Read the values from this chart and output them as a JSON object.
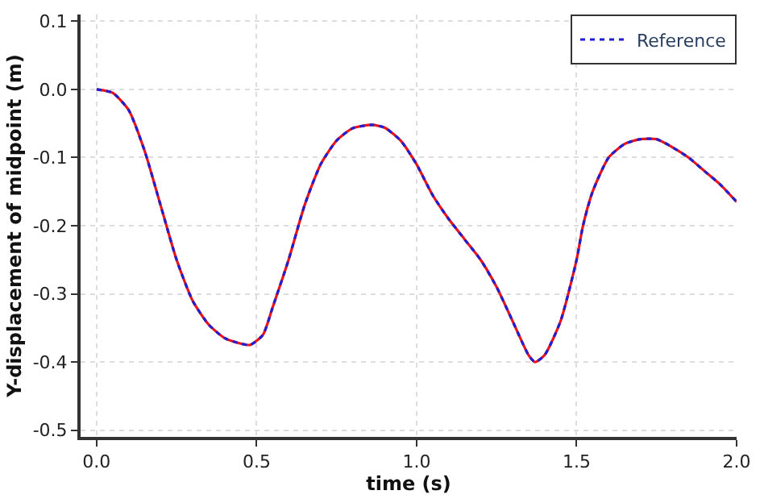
{
  "chart_data": {
    "type": "line",
    "xlabel": "time (s)",
    "ylabel": "Y-displacement of midpoint (m)",
    "x": [
      0,
      0.05,
      0.1,
      0.15,
      0.2,
      0.25,
      0.3,
      0.35,
      0.4,
      0.45,
      0.48,
      0.52,
      0.55,
      0.6,
      0.65,
      0.7,
      0.75,
      0.8,
      0.86,
      0.9,
      0.95,
      1.0,
      1.05,
      1.1,
      1.15,
      1.2,
      1.25,
      1.3,
      1.35,
      1.37,
      1.4,
      1.45,
      1.5,
      1.52,
      1.55,
      1.6,
      1.65,
      1.7,
      1.75,
      1.8,
      1.85,
      1.9,
      1.95,
      2.0
    ],
    "series": [
      {
        "color": "#e8141c",
        "line_style": "solid",
        "values": [
          0,
          -0.005,
          -0.03,
          -0.09,
          -0.17,
          -0.25,
          -0.31,
          -0.345,
          -0.365,
          -0.373,
          -0.375,
          -0.36,
          -0.32,
          -0.25,
          -0.17,
          -0.11,
          -0.075,
          -0.057,
          -0.052,
          -0.056,
          -0.075,
          -0.11,
          -0.155,
          -0.19,
          -0.22,
          -0.25,
          -0.29,
          -0.34,
          -0.39,
          -0.4,
          -0.39,
          -0.34,
          -0.25,
          -0.2,
          -0.15,
          -0.1,
          -0.08,
          -0.073,
          -0.073,
          -0.085,
          -0.1,
          -0.12,
          -0.14,
          -0.165
        ]
      },
      {
        "name": "Reference",
        "color": "#2020d0",
        "line_style": "dotted",
        "values": [
          0,
          -0.005,
          -0.03,
          -0.09,
          -0.17,
          -0.25,
          -0.31,
          -0.345,
          -0.365,
          -0.373,
          -0.375,
          -0.36,
          -0.32,
          -0.25,
          -0.17,
          -0.11,
          -0.075,
          -0.057,
          -0.052,
          -0.056,
          -0.075,
          -0.11,
          -0.155,
          -0.19,
          -0.22,
          -0.25,
          -0.29,
          -0.34,
          -0.39,
          -0.4,
          -0.39,
          -0.34,
          -0.25,
          -0.2,
          -0.15,
          -0.1,
          -0.08,
          -0.073,
          -0.073,
          -0.085,
          -0.1,
          -0.12,
          -0.14,
          -0.165
        ]
      }
    ],
    "xlim": [
      -0.05,
      2.0
    ],
    "xticks": [
      {
        "value": 0,
        "label": "0.0"
      },
      0.5,
      {
        "value": 1,
        "label": "1.0"
      },
      1.5,
      {
        "value": 2,
        "label": "2.0"
      }
    ],
    "ylim": [
      -0.51,
      0.11
    ],
    "yticks": [
      -0.5,
      -0.4,
      -0.3,
      -0.2,
      -0.1,
      {
        "value": 0,
        "label": "0.0"
      },
      0.1
    ],
    "grid": true,
    "legend": "top right"
  }
}
